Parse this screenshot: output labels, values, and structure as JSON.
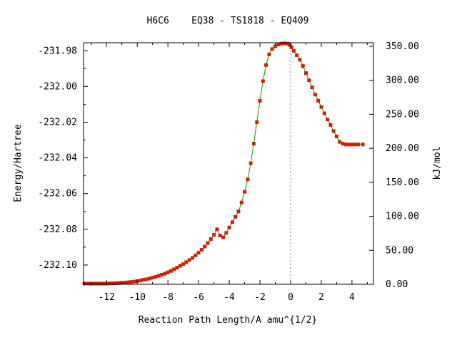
{
  "chart_data": {
    "type": "line",
    "title": "H6C6    EQ38 - TS1818 - EQ409",
    "xlabel": "Reaction Path Length/A amu^{1/2}",
    "ylabel": "Energy/Hartree",
    "y2label": "kJ/mol",
    "xlim": [
      -13.5,
      5.4
    ],
    "ylim": [
      -232.1108,
      -231.9755
    ],
    "y2lim": [
      0,
      355.2
    ],
    "x_ticks": [
      -12,
      -10,
      -8,
      -6,
      -4,
      -2,
      0,
      2,
      4
    ],
    "x_tick_labels": [
      "-12",
      "-10",
      "-8",
      "-6",
      "-4",
      "-2",
      "0",
      "2",
      "4"
    ],
    "y_ticks": [
      -231.98,
      -232.0,
      -232.02,
      -232.04,
      -232.06,
      -232.08,
      -232.1
    ],
    "y_tick_labels": [
      "-231.98",
      "-232.00",
      "-232.02",
      "-232.04",
      "-232.06",
      "-232.08",
      "-232.10"
    ],
    "y2_ticks": [
      0,
      50,
      100,
      150,
      200,
      250,
      300,
      350
    ],
    "y2_tick_labels": [
      "0.00",
      "50.00",
      "100.00",
      "150.00",
      "200.00",
      "250.00",
      "300.00",
      "350.00"
    ],
    "ts_marker_x": 0,
    "grid": false,
    "legend": "none",
    "colors": {
      "line": "#00a000",
      "marker": "#cc2200",
      "frame": "#000000",
      "ts_line": "#808080"
    },
    "series": [
      {
        "x": [
          -13.45,
          -13.2,
          -13.0,
          -12.8,
          -12.6,
          -12.4,
          -12.2,
          -12.0,
          -11.8,
          -11.6,
          -11.4,
          -11.2,
          -11.0,
          -10.8,
          -10.6,
          -10.4,
          -10.2,
          -10.0,
          -9.8,
          -9.6,
          -9.4,
          -9.2,
          -9.0,
          -8.8,
          -8.6,
          -8.4,
          -8.2,
          -8.0,
          -7.8,
          -7.6,
          -7.4,
          -7.2,
          -7.0,
          -6.8,
          -6.6,
          -6.4,
          -6.2,
          -6.0,
          -5.8,
          -5.6,
          -5.4,
          -5.2,
          -5.0,
          -4.8,
          -4.6,
          -4.4,
          -4.2,
          -4.0,
          -3.8,
          -3.6,
          -3.4,
          -3.2,
          -3.0,
          -2.8,
          -2.6,
          -2.4,
          -2.2,
          -2.0,
          -1.8,
          -1.6,
          -1.4,
          -1.2,
          -1.0,
          -0.8,
          -0.6,
          -0.4,
          -0.2,
          -0.05,
          0.05,
          0.2,
          0.4,
          0.6,
          0.8,
          1.0,
          1.2,
          1.4,
          1.6,
          1.8,
          2.0,
          2.2,
          2.4,
          2.6,
          2.8,
          3.0,
          3.2,
          3.4,
          3.6,
          3.8,
          4.0,
          4.2,
          4.4,
          4.7
        ],
        "y": [
          -232.1104,
          -232.1104,
          -232.1104,
          -232.1104,
          -232.1104,
          -232.1104,
          -232.1104,
          -232.1104,
          -232.1103,
          -232.1103,
          -232.1102,
          -232.1101,
          -232.11,
          -232.1099,
          -232.1097,
          -232.1095,
          -232.1093,
          -232.109,
          -232.1087,
          -232.1083,
          -232.108,
          -232.1076,
          -232.1071,
          -232.1066,
          -232.106,
          -232.1054,
          -232.1048,
          -232.1041,
          -232.1033,
          -232.1024,
          -232.1015,
          -232.1005,
          -232.0995,
          -232.0984,
          -232.0972,
          -232.096,
          -232.0946,
          -232.0931,
          -232.0915,
          -232.0897,
          -232.0877,
          -232.0855,
          -232.0831,
          -232.08,
          -232.0835,
          -232.0845,
          -232.082,
          -232.079,
          -232.076,
          -232.073,
          -232.07,
          -232.065,
          -232.059,
          -232.052,
          -232.043,
          -232.032,
          -232.02,
          -232.008,
          -231.997,
          -231.988,
          -231.982,
          -231.979,
          -231.9775,
          -231.9765,
          -231.976,
          -231.9758,
          -231.976,
          -231.9768,
          -231.978,
          -231.98,
          -231.9825,
          -231.985,
          -231.9885,
          -231.9925,
          -231.9965,
          -232.0005,
          -232.0045,
          -232.008,
          -232.0115,
          -232.015,
          -232.0185,
          -232.0215,
          -232.025,
          -232.028,
          -232.031,
          -232.032,
          -232.0325,
          -232.0325,
          -232.0325,
          -232.0325,
          -232.0325,
          -232.0325
        ]
      }
    ]
  }
}
